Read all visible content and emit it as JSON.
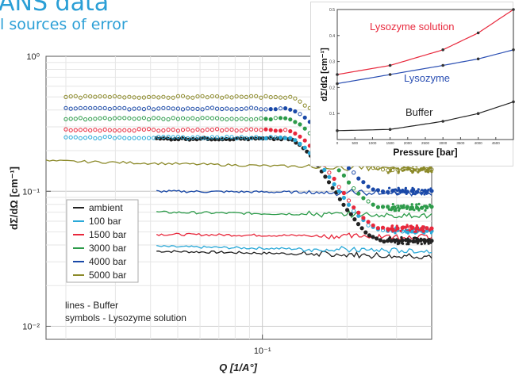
{
  "slide": {
    "title": "ANS data",
    "subtitle": "l sources of error"
  },
  "chart_data": [
    {
      "type": "scatter",
      "xscale": "log",
      "yscale": "log",
      "xlim": [
        0.017,
        0.4
      ],
      "ylim": [
        0.008,
        1.0
      ],
      "xlabel": "Q [1/A°]",
      "ylabel": "dΣ/dΩ [cm⁻¹]",
      "xticks": [
        {
          "value": 0.1,
          "label": "10⁻¹"
        }
      ],
      "yticks": [
        {
          "value": 1.0,
          "label": "10⁰"
        },
        {
          "value": 0.1,
          "label": "10⁻¹"
        },
        {
          "value": 0.01,
          "label": "10⁻²"
        }
      ],
      "grid": true,
      "legend_position": "left",
      "annotations": [
        "lines - Buffer",
        "symbols - Lysozyme solution"
      ],
      "series": [
        {
          "name": "ambient",
          "color": "#222222",
          "filled": true,
          "symbol_plateau": 0.245,
          "symbol_end": 0.043,
          "symbol_xstart": 0.042,
          "line_level": 0.036,
          "line_end": 0.033,
          "line_xstart": 0.042
        },
        {
          "name": "100 bar",
          "color": "#2aa9d8",
          "filled": false,
          "symbol_plateau": 0.25,
          "symbol_end": 0.051,
          "symbol_xstart": 0.02,
          "line_level": 0.039,
          "line_end": 0.036,
          "line_xstart": 0.042
        },
        {
          "name": "1500 bar",
          "color": "#e8283c",
          "filled": false,
          "symbol_plateau": 0.285,
          "symbol_end": 0.053,
          "symbol_xstart": 0.02,
          "line_level": 0.048,
          "line_end": 0.046,
          "line_xstart": 0.042
        },
        {
          "name": "3000 bar",
          "color": "#2d9b4a",
          "filled": false,
          "symbol_plateau": 0.345,
          "symbol_end": 0.076,
          "symbol_xstart": 0.02,
          "line_level": 0.07,
          "line_end": 0.066,
          "line_xstart": 0.042
        },
        {
          "name": "4000 bar",
          "color": "#1a49a8",
          "filled": false,
          "symbol_plateau": 0.41,
          "symbol_end": 0.1,
          "symbol_xstart": 0.02,
          "line_level": 0.1,
          "line_end": 0.097,
          "line_xstart": 0.042
        },
        {
          "name": "5000 bar",
          "color": "#8c8a2a",
          "filled": false,
          "symbol_plateau": 0.5,
          "symbol_end": 0.145,
          "symbol_xstart": 0.02,
          "line_level": 0.168,
          "line_end": 0.145,
          "line_xstart": 0.017
        }
      ]
    },
    {
      "type": "line",
      "xlim": [
        0,
        5000
      ],
      "ylim": [
        0,
        0.5
      ],
      "xlabel": "Pressure [bar]",
      "ylabel": "dΣ/dΩ [cm⁻¹]",
      "xticks": [
        0,
        500,
        1000,
        1500,
        2000,
        2500,
        3000,
        3500,
        4000,
        4500
      ],
      "yticks": [
        0.1,
        0.2,
        0.3,
        0.4,
        0.5
      ],
      "grid": false,
      "series": [
        {
          "name": "Lysozyme solution",
          "color": "#e8283c",
          "x": [
            0,
            1500,
            3000,
            4000,
            5000
          ],
          "y": [
            0.25,
            0.285,
            0.345,
            0.41,
            0.5
          ]
        },
        {
          "name": "Lysozyme",
          "color": "#2b4fb3",
          "x": [
            0,
            1500,
            3000,
            4000,
            5000
          ],
          "y": [
            0.215,
            0.25,
            0.285,
            0.31,
            0.345
          ]
        },
        {
          "name": "Buffer",
          "color": "#222222",
          "x": [
            0,
            1500,
            3000,
            4000,
            5000
          ],
          "y": [
            0.034,
            0.039,
            0.07,
            0.1,
            0.145
          ]
        }
      ]
    }
  ]
}
